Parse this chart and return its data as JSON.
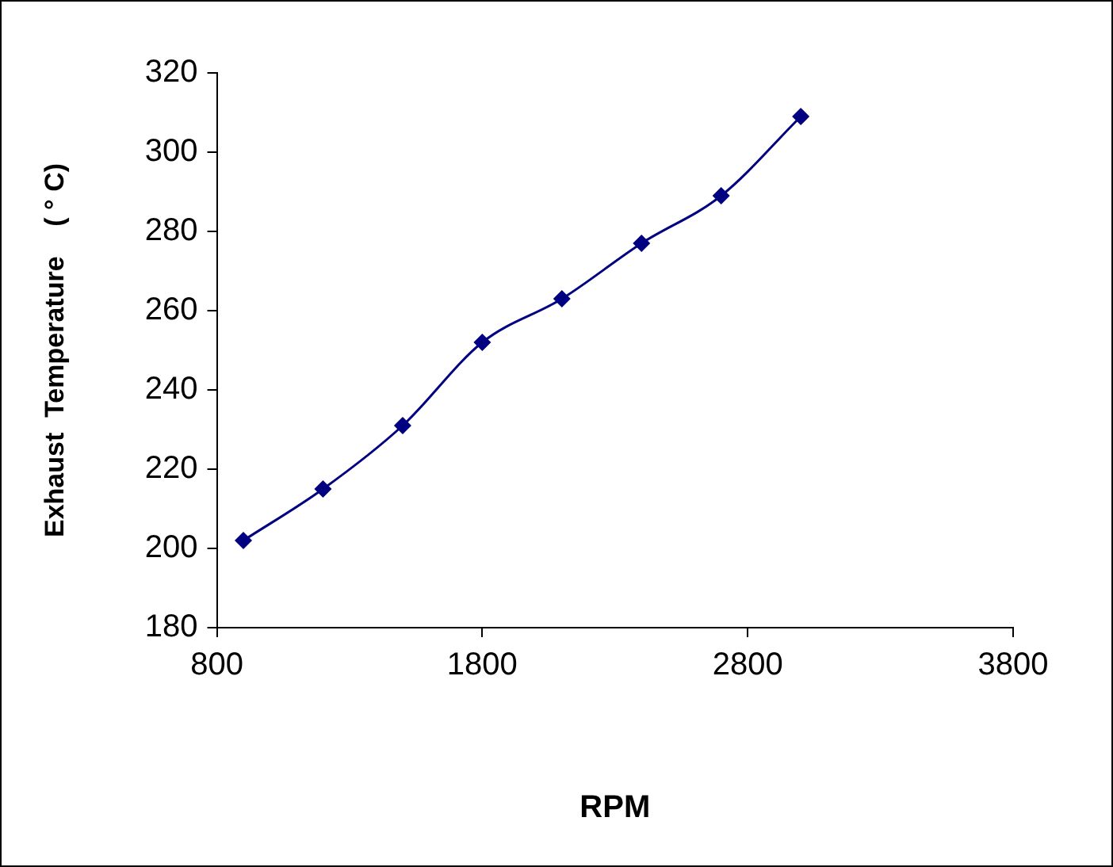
{
  "chart_data": {
    "type": "line",
    "xlabel": "RPM",
    "ylabel": "Exhaust  Temperature    ( ° C)",
    "x": [
      900,
      1200,
      1500,
      1800,
      2100,
      2400,
      2700,
      3000
    ],
    "series": [
      {
        "color": "#000080",
        "values": [
          202,
          215,
          231,
          252,
          263,
          277,
          289,
          309
        ]
      }
    ],
    "xlim": [
      800,
      3800
    ],
    "xticks": [
      800,
      1800,
      2800,
      3800
    ],
    "ylim": [
      180,
      320
    ],
    "yticks": [
      180,
      200,
      220,
      240,
      260,
      280,
      300,
      320
    ],
    "grid": false,
    "legend": false,
    "marker": "diamond",
    "line_style": "solid"
  }
}
